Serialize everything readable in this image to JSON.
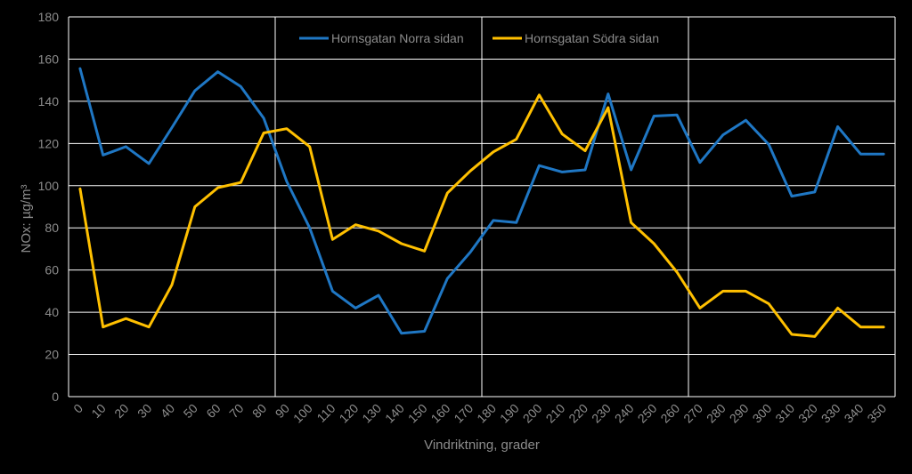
{
  "chart_data": {
    "type": "line",
    "title": "",
    "xlabel": "Vindriktning, grader",
    "ylabel": "NOx: µg/m³",
    "ylim": [
      0,
      180
    ],
    "yticks": [
      "0",
      "20",
      "40",
      "60",
      "80",
      "100",
      "120",
      "140",
      "160",
      "180"
    ],
    "x": [
      "0",
      "10",
      "20",
      "30",
      "40",
      "50",
      "60",
      "70",
      "80",
      "90",
      "100",
      "110",
      "120",
      "130",
      "140",
      "150",
      "160",
      "170",
      "180",
      "190",
      "200",
      "210",
      "220",
      "230",
      "240",
      "250",
      "260",
      "270",
      "280",
      "290",
      "300",
      "310",
      "320",
      "330",
      "340",
      "350"
    ],
    "vertical_grid_at": [
      "90",
      "180",
      "270"
    ],
    "legend": "top",
    "series": [
      {
        "name": "Hornsgatan Norra sidan",
        "color": "#1f77c4",
        "values": [
          155.5,
          114.5,
          118.5,
          110.5,
          127.5,
          145,
          154,
          147,
          132,
          102,
          80,
          50,
          42,
          48,
          30,
          31,
          56,
          68.5,
          83.5,
          82.5,
          109.5,
          106.5,
          107.5,
          143.5,
          107.5,
          133,
          133.5,
          111,
          124,
          131,
          119.5,
          95,
          97,
          128,
          115,
          115
        ]
      },
      {
        "name": "Hornsgatan Södra sidan",
        "color": "#ffc000",
        "values": [
          98.5,
          33,
          37,
          33,
          53,
          90,
          99,
          101.5,
          125,
          127,
          118.5,
          74.5,
          81.5,
          78.5,
          72.5,
          69,
          96.5,
          107,
          116,
          122,
          143,
          124.5,
          116.5,
          137,
          82.5,
          72.5,
          59,
          42,
          50,
          50,
          44,
          29.5,
          28.5,
          42,
          33,
          33
        ]
      }
    ]
  }
}
